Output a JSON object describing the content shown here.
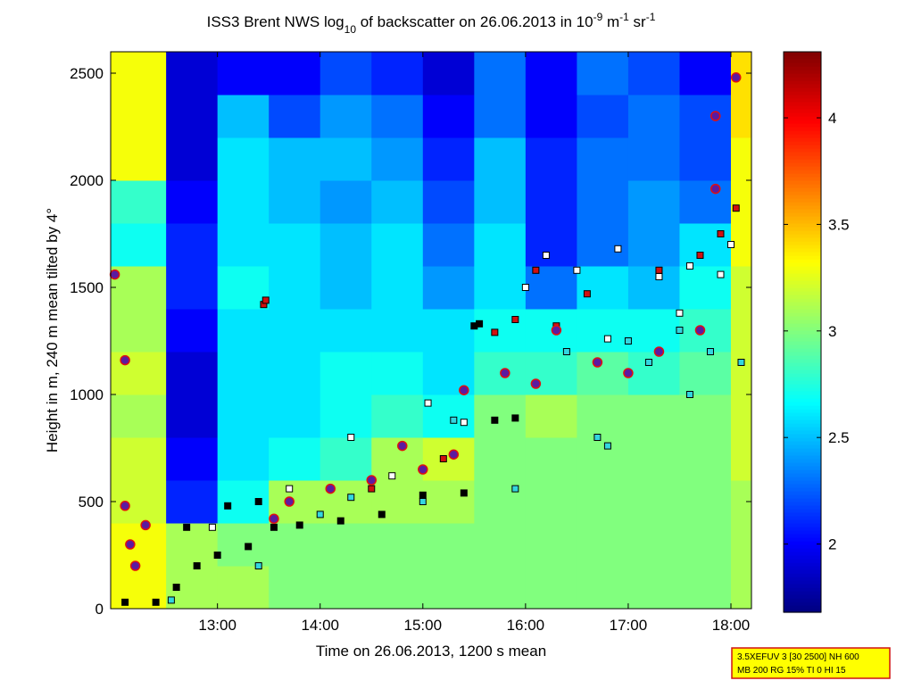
{
  "chart_data": {
    "type": "heatmap",
    "title": [
      "ISS3 Brent NWS log",
      "10",
      " of backscatter on 26.06.2013 in 10",
      "-9",
      " m",
      "-1",
      " sr",
      "-1"
    ],
    "x_label": "Time on 26.06.2013, 1200 s mean",
    "y_label": "Height in m, 240 m mean tilted by 4°",
    "annotation": [
      "3.5XEFUV 3 [30 2500] NH 600",
      "MB 200 RG 15% TI 0 HI 15"
    ],
    "xlim": [
      11.96,
      18.2
    ],
    "xticks": [
      {
        "value": 13,
        "label": "13:00"
      },
      {
        "value": 14,
        "label": "14:00"
      },
      {
        "value": 15,
        "label": "15:00"
      },
      {
        "value": 16,
        "label": "16:00"
      },
      {
        "value": 17,
        "label": "17:00"
      },
      {
        "value": 18,
        "label": "18:00"
      }
    ],
    "ylim": [
      0,
      2600
    ],
    "yticks": [
      0,
      500,
      1000,
      1500,
      2000,
      2500
    ],
    "clim": [
      1.68,
      4.31
    ],
    "cticks": [
      2,
      2.5,
      3,
      3.5,
      4
    ],
    "xbins": [
      11.96,
      12.5,
      13,
      13.5,
      14,
      14.5,
      15,
      15.5,
      16,
      16.5,
      17,
      17.5,
      18,
      18.2
    ],
    "ybins": [
      0,
      200,
      400,
      600,
      800,
      1000,
      1200,
      1400,
      1600,
      1800,
      2000,
      2200,
      2400,
      2600
    ],
    "z": [
      [
        3.3,
        3.1,
        3.1,
        3.0,
        3.0,
        3.0,
        3.0,
        3.0,
        3.0,
        3.0,
        3.0,
        3.0,
        3.1
      ],
      [
        3.3,
        3.1,
        3.0,
        3.0,
        3.0,
        3.0,
        3.0,
        3.0,
        3.0,
        3.0,
        3.0,
        3.0,
        3.1
      ],
      [
        3.2,
        2.1,
        2.7,
        3.1,
        3.1,
        3.1,
        3.1,
        3.0,
        3.0,
        3.0,
        3.0,
        3.0,
        3.1
      ],
      [
        3.2,
        2.0,
        2.6,
        2.7,
        2.8,
        3.1,
        3.2,
        3.0,
        3.0,
        3.0,
        3.0,
        3.0,
        3.2
      ],
      [
        3.1,
        1.9,
        2.6,
        2.6,
        2.7,
        2.8,
        2.7,
        3.0,
        3.1,
        3.0,
        3.0,
        3.0,
        3.2
      ],
      [
        3.2,
        1.9,
        2.6,
        2.6,
        2.7,
        2.7,
        2.6,
        2.8,
        2.8,
        2.9,
        2.8,
        2.9,
        3.2
      ],
      [
        3.1,
        2.0,
        2.6,
        2.6,
        2.6,
        2.6,
        2.6,
        2.7,
        2.7,
        2.7,
        2.7,
        2.8,
        3.2
      ],
      [
        3.1,
        2.1,
        2.7,
        2.6,
        2.5,
        2.6,
        2.4,
        2.6,
        2.3,
        2.6,
        2.5,
        2.7,
        3.2
      ],
      [
        2.7,
        2.1,
        2.6,
        2.6,
        2.5,
        2.6,
        2.3,
        2.6,
        2.1,
        2.3,
        2.4,
        2.6,
        3.3
      ],
      [
        2.8,
        2.0,
        2.6,
        2.5,
        2.4,
        2.5,
        2.2,
        2.5,
        2.1,
        2.3,
        2.4,
        2.3,
        3.3
      ],
      [
        3.3,
        1.9,
        2.6,
        2.5,
        2.5,
        2.4,
        2.1,
        2.5,
        2.1,
        2.3,
        2.3,
        2.2,
        3.3
      ],
      [
        3.3,
        1.9,
        2.5,
        2.2,
        2.4,
        2.3,
        2.0,
        2.3,
        2.0,
        2.2,
        2.3,
        2.2,
        3.4
      ],
      [
        3.3,
        1.9,
        2.0,
        2.0,
        2.2,
        2.1,
        1.9,
        2.3,
        2.0,
        2.3,
        2.2,
        2.0,
        3.4
      ]
    ],
    "series": [
      {
        "marker": "square",
        "color": "#000000",
        "x": [
          12.1,
          12.4,
          12.6,
          12.8,
          13.0,
          13.3,
          13.55,
          13.8,
          14.2,
          14.6,
          15.0,
          15.4,
          15.5,
          15.7,
          15.9,
          13.1,
          13.4,
          12.7,
          15.55
        ],
        "y": [
          30,
          30,
          100,
          200,
          250,
          290,
          380,
          390,
          410,
          440,
          530,
          540,
          1320,
          880,
          890,
          480,
          500,
          380,
          1330
        ]
      },
      {
        "marker": "square",
        "color": "#ffffff",
        "x": [
          12.95,
          13.7,
          14.3,
          14.7,
          15.05,
          15.4,
          16.0,
          16.2,
          16.5,
          16.9,
          17.3,
          17.6,
          17.9,
          18.0,
          16.8,
          17.5
        ],
        "y": [
          380,
          560,
          800,
          620,
          960,
          870,
          1500,
          1650,
          1580,
          1680,
          1550,
          1600,
          1560,
          1700,
          1260,
          1380
        ]
      },
      {
        "marker": "square",
        "color": "#33d6e0",
        "x": [
          12.55,
          13.4,
          14.0,
          14.3,
          15.0,
          15.3,
          15.8,
          16.1,
          16.4,
          16.7,
          17.0,
          17.2,
          17.5,
          17.8,
          18.1,
          15.9,
          16.8,
          17.6
        ],
        "y": [
          40,
          200,
          440,
          520,
          500,
          880,
          1100,
          1050,
          1200,
          800,
          1250,
          1150,
          1300,
          1200,
          1150,
          560,
          760,
          1000
        ]
      },
      {
        "marker": "square",
        "color": "#d01010",
        "x": [
          13.45,
          13.47,
          15.2,
          15.7,
          16.1,
          16.3,
          16.6,
          17.3,
          17.7,
          17.9,
          18.05,
          14.5,
          15.9
        ],
        "y": [
          1420,
          1440,
          700,
          1290,
          1580,
          1320,
          1470,
          1580,
          1650,
          1750,
          1870,
          560,
          1350
        ]
      },
      {
        "marker": "circle",
        "color": "#5b1aa0",
        "x": [
          12.0,
          12.1,
          12.1,
          12.15,
          12.2,
          12.3,
          13.55,
          13.7,
          14.1,
          14.5,
          14.8,
          15.0,
          15.3,
          15.4,
          15.8,
          16.1,
          16.3,
          16.7,
          17.0,
          17.3,
          17.7,
          17.85,
          18.05,
          17.85
        ],
        "y": [
          1560,
          1160,
          480,
          300,
          200,
          390,
          420,
          500,
          560,
          600,
          760,
          650,
          720,
          1020,
          1100,
          1050,
          1300,
          1150,
          1100,
          1200,
          1300,
          2300,
          2480,
          1960
        ]
      }
    ]
  }
}
